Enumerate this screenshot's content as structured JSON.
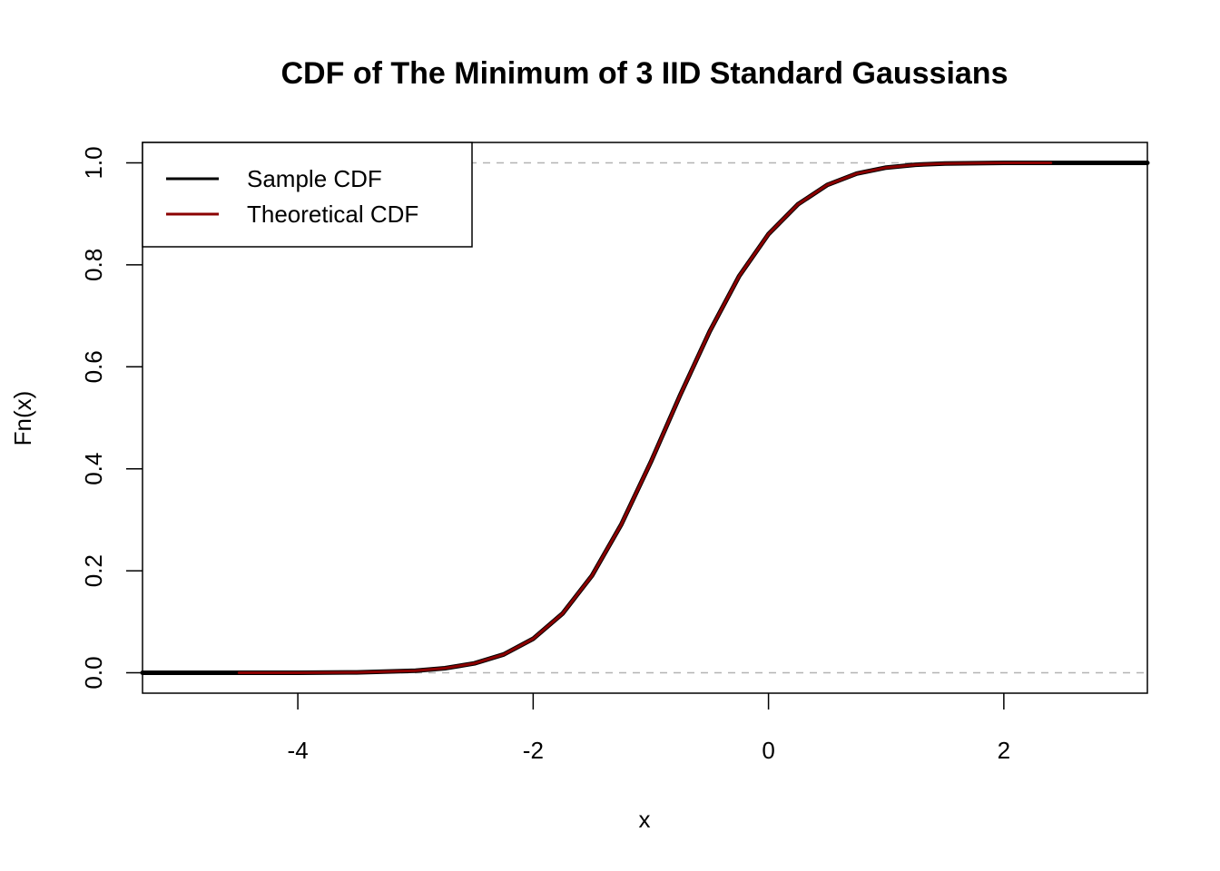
{
  "chart_data": {
    "type": "line",
    "title": "CDF of The Minimum of 3 IID Standard Gaussians",
    "xlabel": "x",
    "ylabel": "Fn(x)",
    "xlim": [
      -5.32,
      3.22
    ],
    "ylim": [
      -0.04,
      1.04
    ],
    "x_ticks": [
      -4,
      -2,
      0,
      2
    ],
    "x_tick_labels": [
      "-4",
      "-2",
      "0",
      "2"
    ],
    "y_ticks": [
      0.0,
      0.2,
      0.4,
      0.6,
      0.8,
      1.0
    ],
    "y_tick_labels": [
      "0.0",
      "0.2",
      "0.4",
      "0.6",
      "0.8",
      "1.0"
    ],
    "reference_lines": {
      "y": [
        0,
        1
      ],
      "style": "dashed",
      "color": "#b3b3b3"
    },
    "legend": {
      "placement": "top-left",
      "entries": [
        {
          "label": "Sample CDF",
          "color": "#000000"
        },
        {
          "label": "Theoretical CDF",
          "color": "#8b0000"
        }
      ]
    },
    "series": [
      {
        "name": "Sample CDF",
        "color": "#000000",
        "x": [
          -5.32,
          -4.5,
          -4.0,
          -3.5,
          -3.0,
          -2.75,
          -2.5,
          -2.25,
          -2.0,
          -1.75,
          -1.5,
          -1.25,
          -1.0,
          -0.75,
          -0.5,
          -0.25,
          0.0,
          0.25,
          0.5,
          0.75,
          1.0,
          1.25,
          1.5,
          2.0,
          2.4,
          3.22
        ],
        "y": [
          0.0,
          0.0,
          0.0001,
          0.0007,
          0.004,
          0.0089,
          0.0184,
          0.036,
          0.0667,
          0.1163,
          0.1906,
          0.2915,
          0.4134,
          0.5449,
          0.6694,
          0.7778,
          0.8603,
          0.9187,
          0.9567,
          0.979,
          0.9907,
          0.9962,
          0.9986,
          0.9999,
          1.0,
          1.0
        ]
      },
      {
        "name": "Theoretical CDF",
        "color": "#8b0000",
        "x": [
          -4.5,
          -4.0,
          -3.5,
          -3.0,
          -2.75,
          -2.5,
          -2.25,
          -2.0,
          -1.75,
          -1.5,
          -1.25,
          -1.0,
          -0.75,
          -0.5,
          -0.25,
          0.0,
          0.25,
          0.5,
          0.75,
          1.0,
          1.25,
          1.5,
          2.0,
          2.4
        ],
        "y": [
          0.0,
          0.0001,
          0.0007,
          0.004,
          0.0089,
          0.0184,
          0.036,
          0.0667,
          0.1163,
          0.1906,
          0.2915,
          0.4134,
          0.5449,
          0.6694,
          0.7778,
          0.8603,
          0.9187,
          0.9567,
          0.979,
          0.9907,
          0.9962,
          0.9986,
          0.9999,
          1.0
        ]
      }
    ]
  }
}
